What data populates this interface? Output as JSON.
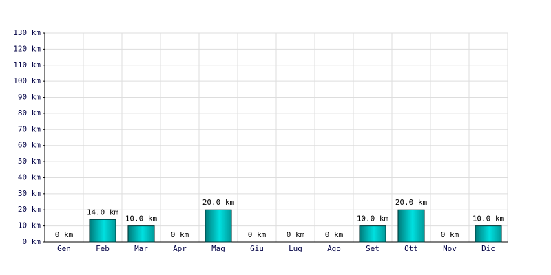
{
  "chart_data": {
    "type": "bar",
    "categories": [
      "Gen",
      "Feb",
      "Mar",
      "Apr",
      "Mag",
      "Giu",
      "Lug",
      "Ago",
      "Set",
      "Ott",
      "Nov",
      "Dic"
    ],
    "values": [
      0,
      14,
      10,
      0,
      20,
      0,
      0,
      0,
      10,
      20,
      0,
      10
    ],
    "value_labels": [
      "0 km",
      "14.0 km",
      "10.0 km",
      "0 km",
      "20.0 km",
      "0 km",
      "0 km",
      "0 km",
      "10.0 km",
      "20.0 km",
      "0 km",
      "10.0 km"
    ],
    "color": "#00c8c8",
    "ylim": [
      0,
      130
    ],
    "yticks": [
      {
        "value": 0,
        "label": "0 km"
      },
      {
        "value": 10,
        "label": "10 km"
      },
      {
        "value": 20,
        "label": "20 km"
      },
      {
        "value": 30,
        "label": "30 km"
      },
      {
        "value": 40,
        "label": "40 km"
      },
      {
        "value": 50,
        "label": "50 km"
      },
      {
        "value": 60,
        "label": "60 km"
      },
      {
        "value": 70,
        "label": "70 km"
      },
      {
        "value": 80,
        "label": "80 km"
      },
      {
        "value": 90,
        "label": "90 km"
      },
      {
        "value": 100,
        "label": "100 km"
      },
      {
        "value": 110,
        "label": "110 km"
      },
      {
        "value": 120,
        "label": "120 km"
      },
      {
        "value": 130,
        "label": "130 km"
      }
    ],
    "grid": true
  }
}
